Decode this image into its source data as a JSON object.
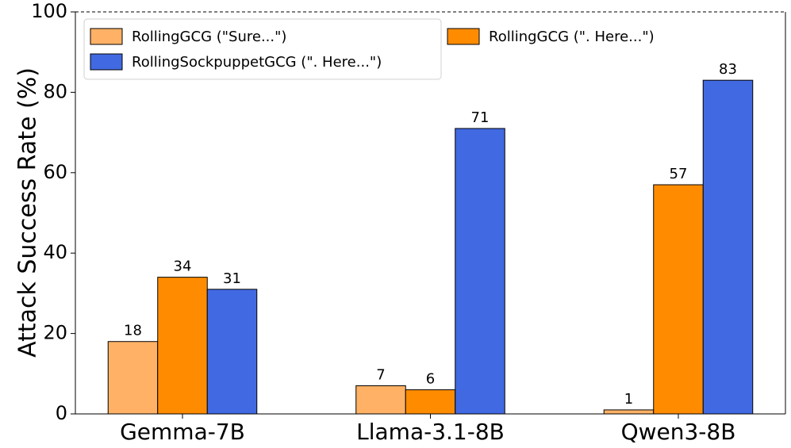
{
  "chart_data": {
    "type": "bar",
    "y_label": "Attack Success Rate (%)",
    "categories": [
      "Gemma-7B",
      "Llama-3.1-8B",
      "Qwen3-8B"
    ],
    "series": [
      {
        "name": "RollingGCG (\"Sure...\")",
        "color": "#ffb266",
        "values": [
          18,
          7,
          1
        ]
      },
      {
        "name": "RollingGCG (\". Here...\")",
        "color": "#ff8c00",
        "values": [
          34,
          6,
          57
        ]
      },
      {
        "name": "RollingSockpuppetGCG (\". Here...\")",
        "color": "#4169e1",
        "values": [
          31,
          71,
          83
        ]
      }
    ],
    "ylim": [
      0,
      100
    ],
    "yticks": [
      0,
      20,
      40,
      60,
      80,
      100
    ],
    "legend": "upper left"
  }
}
